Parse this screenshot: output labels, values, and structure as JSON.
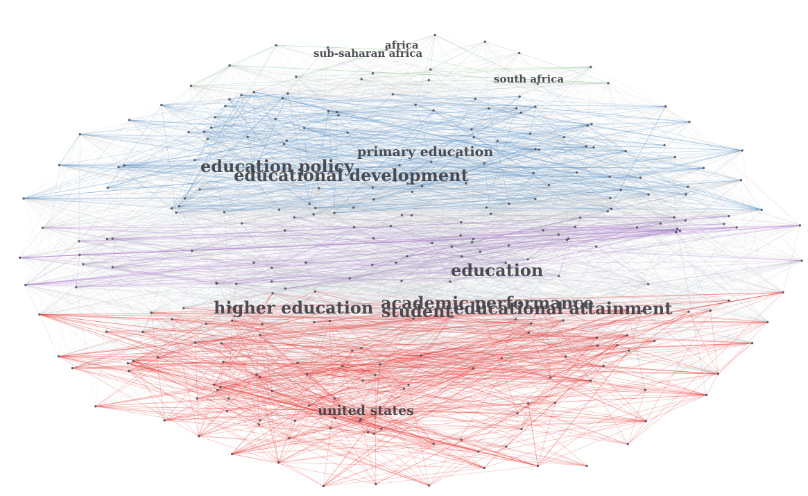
{
  "map": {
    "cluster_colors": {
      "green": "#4caf50",
      "blue": "#3a7fc1",
      "purple": "#9c5cc4",
      "red": "#e8332f",
      "grey": "#b9bdc4"
    },
    "labels": {
      "africa": "africa",
      "sub_saharan_africa": "sub-saharan africa",
      "south_africa": "south africa",
      "primary_education": "primary education",
      "education_policy": "education policy",
      "educational_development": "educational development",
      "education": "education",
      "higher_education": "higher education",
      "academic_performance": "academic performance",
      "student": "student",
      "educational_attainment": "educational attainment",
      "united_states": "united states"
    }
  }
}
